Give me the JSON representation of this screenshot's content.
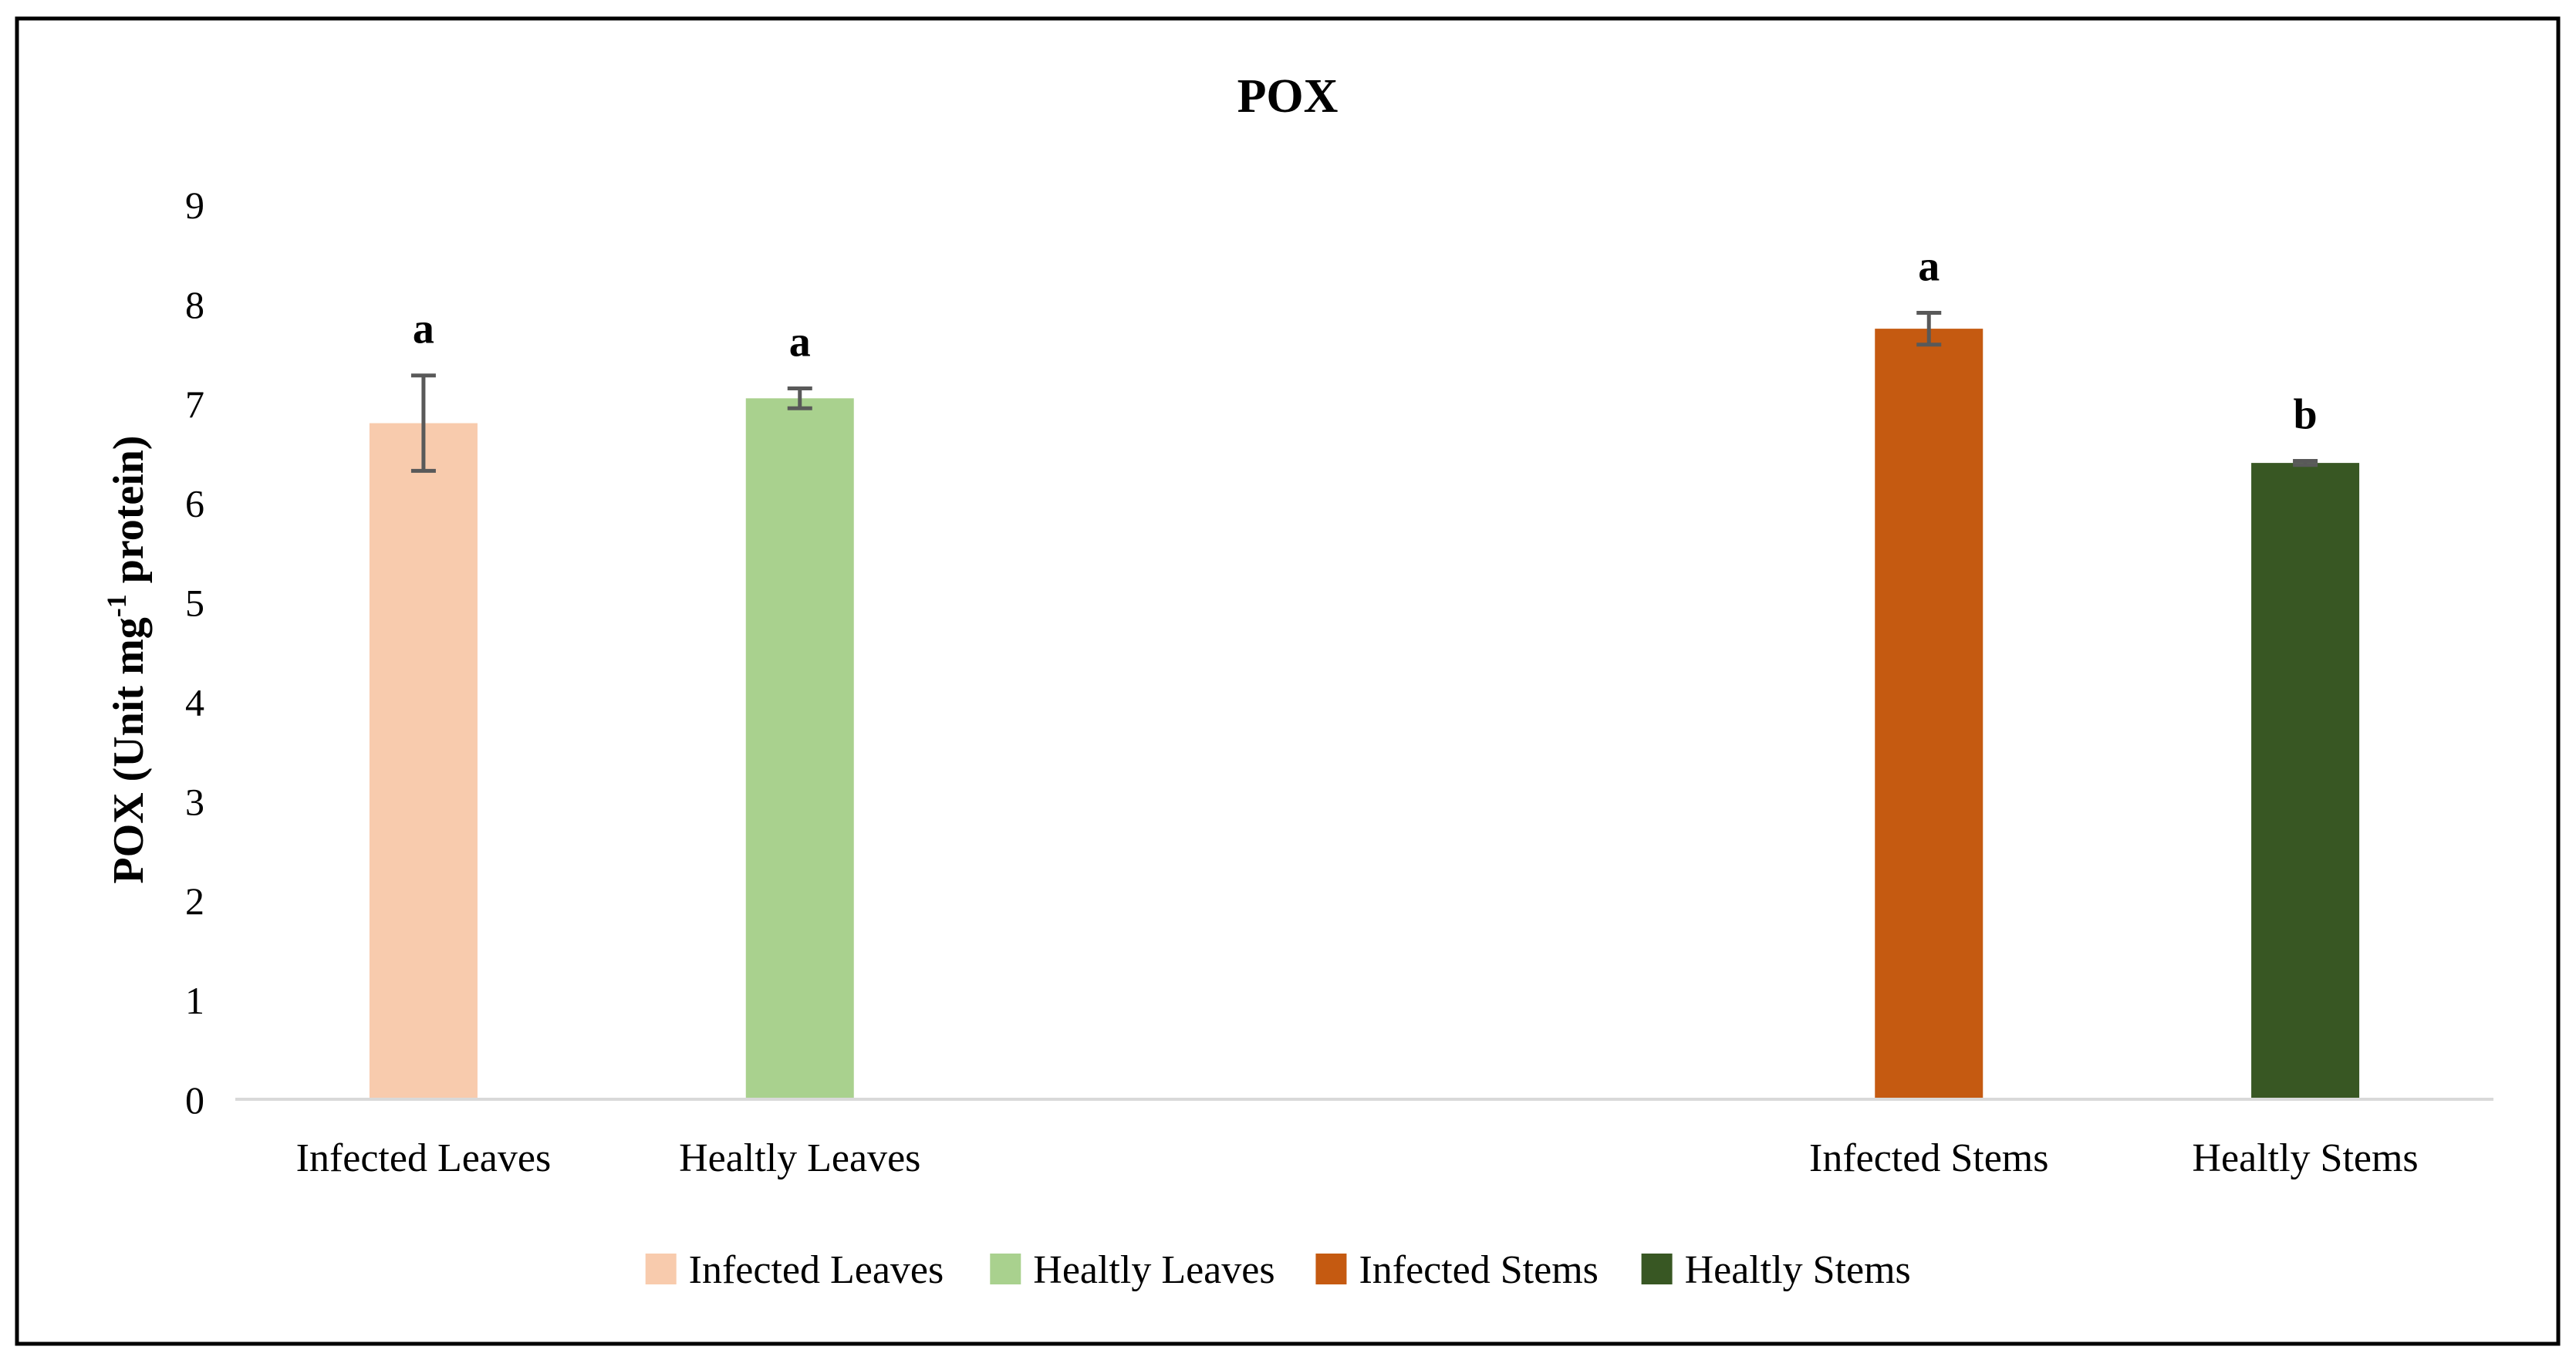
{
  "chart_data": {
    "type": "bar",
    "title": "POX",
    "ylabel": "POX (Unit mg",
    "ylabel_sup": "-1",
    "ylabel_end": " protein)",
    "xlabel": "",
    "ylim": [
      0,
      9
    ],
    "yticks": [
      "0",
      "1",
      "2",
      "3",
      "4",
      "5",
      "6",
      "7",
      "8",
      "9"
    ],
    "grid": false,
    "legend_position": "bottom",
    "categories": [
      "Infected Leaves",
      "Healtly Leaves",
      "Infected Stems",
      "Healtly Stems"
    ],
    "slots": [
      0,
      1,
      4,
      5
    ],
    "slot_count": 6,
    "values": [
      6.8,
      7.05,
      7.75,
      6.4
    ],
    "errors": [
      0.48,
      0.1,
      0.16,
      0.02
    ],
    "letters": [
      "a",
      "a",
      "a",
      "b"
    ],
    "colors": [
      "#F8CBAD",
      "#A9D18E",
      "#C55A11",
      "#385723"
    ],
    "legend": [
      "Infected Leaves",
      "Healtly Leaves",
      "Infected Stems",
      "Healtly Stems"
    ]
  }
}
